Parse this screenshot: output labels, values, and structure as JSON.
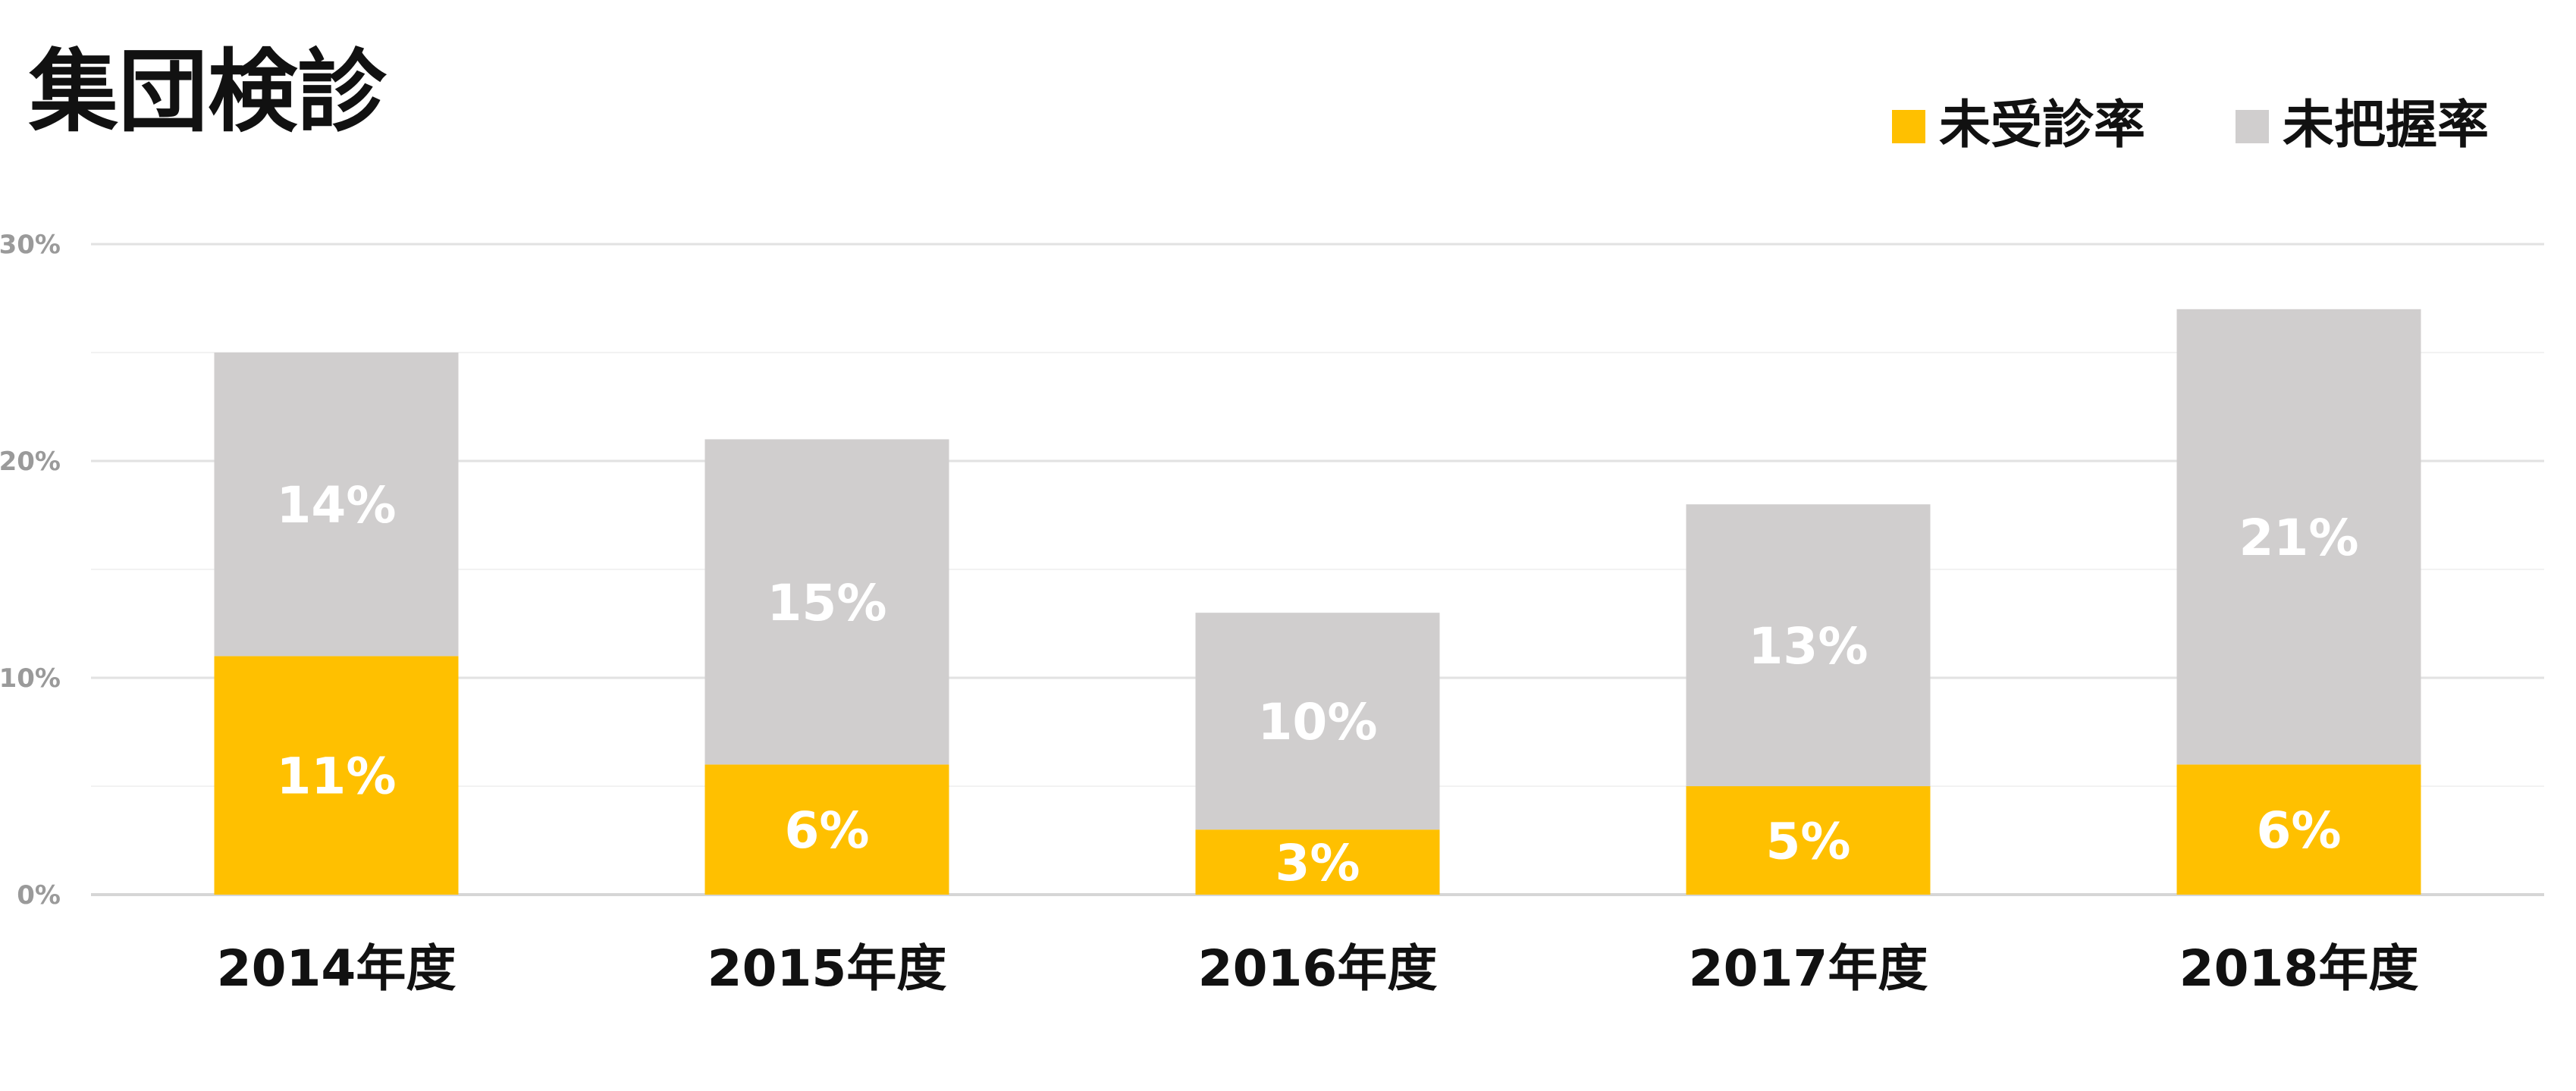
{
  "chart_data": {
    "type": "bar",
    "stacked": true,
    "title": "集団検診",
    "categories": [
      "2014年度",
      "2015年度",
      "2016年度",
      "2017年度",
      "2018年度"
    ],
    "series": [
      {
        "name": "未受診率",
        "color": "#FFC000",
        "values": [
          11,
          6,
          3,
          5,
          6
        ],
        "labels": [
          "11%",
          "6%",
          "3%",
          "5%",
          "6%"
        ]
      },
      {
        "name": "未把握率",
        "color": "#D0CECE",
        "values": [
          14,
          15,
          10,
          13,
          21
        ],
        "labels": [
          "14%",
          "15%",
          "10%",
          "13%",
          "21%"
        ]
      }
    ],
    "ylim": [
      0,
      30
    ],
    "yticks": [
      {
        "value": 0,
        "label": "0%"
      },
      {
        "value": 10,
        "label": "10%"
      },
      {
        "value": 20,
        "label": "20%"
      },
      {
        "value": 30,
        "label": "30%"
      }
    ],
    "grid": true,
    "legend_position": "top-right"
  }
}
